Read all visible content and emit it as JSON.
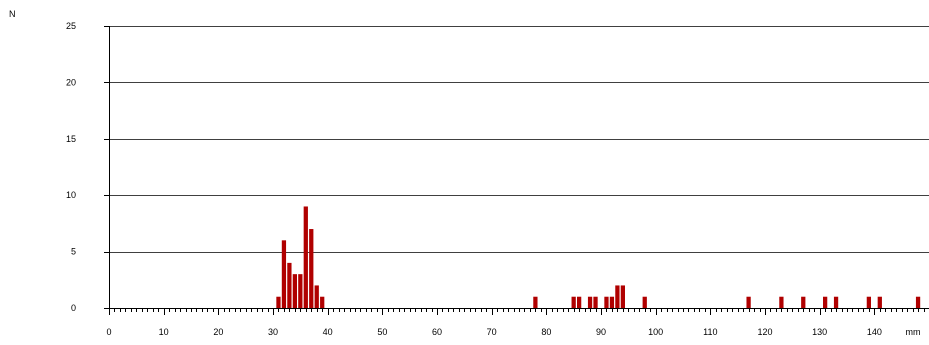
{
  "chart_data": {
    "type": "bar",
    "title": "",
    "ylabel": "N",
    "xlabel": "mm",
    "xlim": [
      0,
      150
    ],
    "ylim": [
      0,
      25
    ],
    "grid": true,
    "x_ticks": [
      0,
      10,
      20,
      30,
      40,
      50,
      60,
      70,
      80,
      90,
      100,
      110,
      120,
      130,
      140
    ],
    "y_ticks": [
      0,
      5,
      10,
      15,
      20,
      25
    ],
    "bar_color": "#b00000",
    "x": [
      31,
      32,
      33,
      34,
      35,
      36,
      37,
      38,
      39,
      78,
      85,
      86,
      88,
      89,
      91,
      92,
      93,
      94,
      98,
      117,
      123,
      127,
      131,
      133,
      139,
      141,
      148
    ],
    "values": [
      1,
      6,
      4,
      3,
      3,
      9,
      7,
      2,
      1,
      1,
      1,
      1,
      1,
      1,
      1,
      1,
      2,
      2,
      1,
      1,
      1,
      1,
      1,
      1,
      1,
      1,
      1
    ]
  }
}
